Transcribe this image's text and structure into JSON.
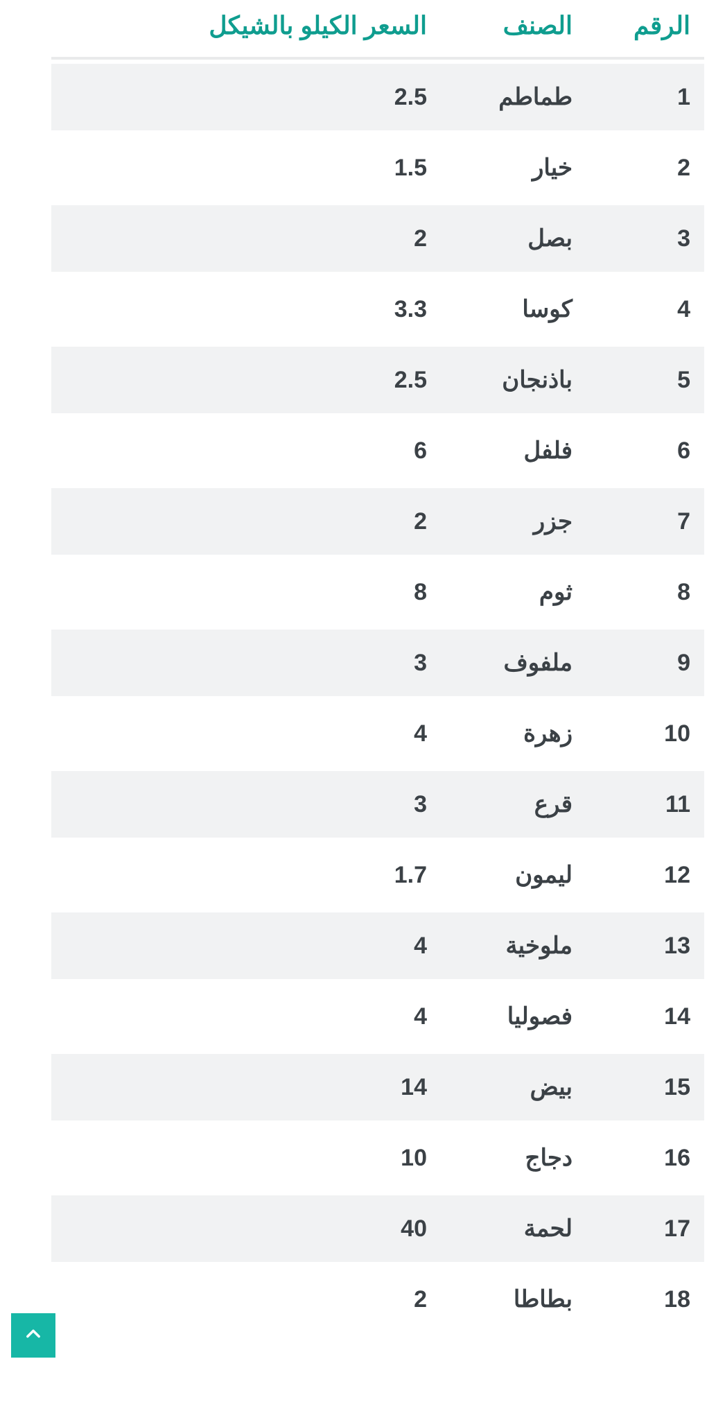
{
  "table": {
    "header_color": "#0f9d8f",
    "text_color": "#3b4146",
    "row_alt_bg": "#f1f2f3",
    "row_bg": "#ffffff",
    "border_color": "#e9eaeb",
    "font_size_header": 36,
    "font_size_cell": 34,
    "columns": [
      {
        "key": "num",
        "label": "الرقم"
      },
      {
        "key": "item",
        "label": "الصنف"
      },
      {
        "key": "price",
        "label": "السعر الكيلو بالشيكل"
      }
    ],
    "rows": [
      {
        "num": "1",
        "item": "طماطم",
        "price": "2.5"
      },
      {
        "num": "2",
        "item": "خيار",
        "price": "1.5"
      },
      {
        "num": "3",
        "item": "بصل",
        "price": "2"
      },
      {
        "num": "4",
        "item": "كوسا",
        "price": "3.3"
      },
      {
        "num": "5",
        "item": "باذنجان",
        "price": "2.5"
      },
      {
        "num": "6",
        "item": "فلفل",
        "price": "6"
      },
      {
        "num": "7",
        "item": "جزر",
        "price": "2"
      },
      {
        "num": "8",
        "item": "ثوم",
        "price": "8"
      },
      {
        "num": "9",
        "item": "ملفوف",
        "price": "3"
      },
      {
        "num": "10",
        "item": "زهرة",
        "price": "4"
      },
      {
        "num": "11",
        "item": "قرع",
        "price": "3"
      },
      {
        "num": "12",
        "item": "ليمون",
        "price": "1.7"
      },
      {
        "num": "13",
        "item": "ملوخية",
        "price": "4"
      },
      {
        "num": "14",
        "item": "فصوليا",
        "price": "4"
      },
      {
        "num": "15",
        "item": "بيض",
        "price": "14"
      },
      {
        "num": "16",
        "item": "دجاج",
        "price": "10"
      },
      {
        "num": "17",
        "item": "لحمة",
        "price": "40"
      },
      {
        "num": "18",
        "item": "بطاطا",
        "price": "2"
      }
    ]
  },
  "scroll_top_button": {
    "bg_color": "#17b7a6",
    "icon_color": "#ffffff"
  }
}
